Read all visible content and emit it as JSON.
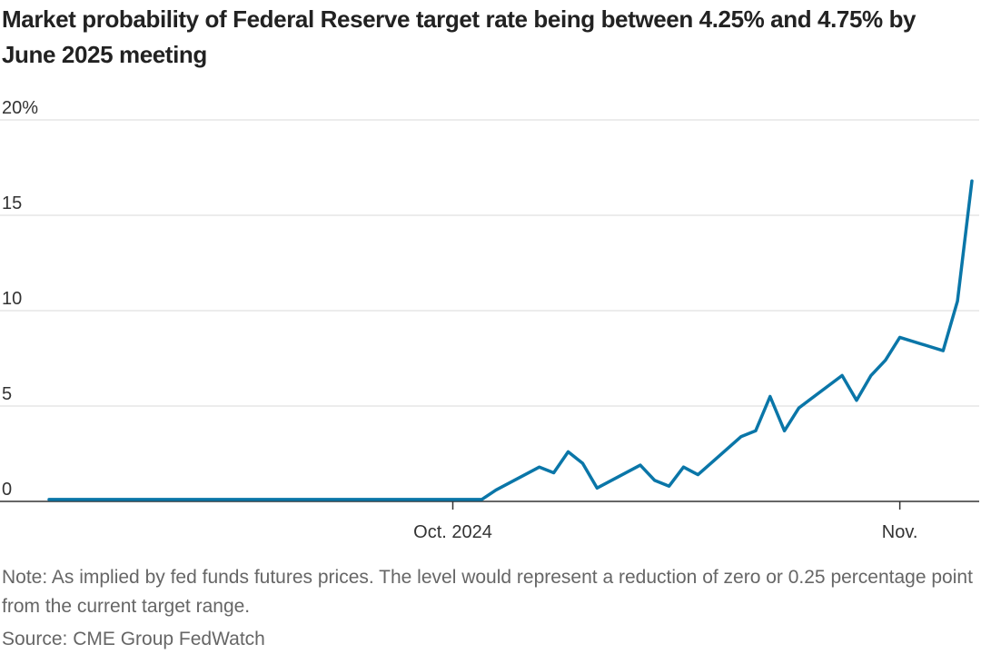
{
  "chart_data": {
    "type": "line",
    "title": "Market probability of Federal Reserve target rate being between 4.25% and 4.75% by June 2025 meeting",
    "note": "Note: As implied by fed funds futures prices. The level would represent a reduction of zero or 0.25 percentage point from the current target range.",
    "source": "Source: CME Group FedWatch",
    "xlabel": "",
    "ylabel": "",
    "ylim": [
      0,
      20
    ],
    "y_ticks": [
      {
        "value": 0,
        "label": "0"
      },
      {
        "value": 5,
        "label": "5"
      },
      {
        "value": 10,
        "label": "10"
      },
      {
        "value": 15,
        "label": "15"
      },
      {
        "value": 20,
        "label": "20%"
      }
    ],
    "xlim": [
      "2024-09-03",
      "2024-11-05"
    ],
    "x_ticks": [
      {
        "date": "2024-10-01",
        "label": "Oct. 2024"
      },
      {
        "date": "2024-11-01",
        "label": "Nov."
      }
    ],
    "grid": true,
    "line_color": "#0a76a8",
    "series": [
      {
        "points": [
          [
            "2024-09-03",
            0.1
          ],
          [
            "2024-10-01",
            0.1
          ],
          [
            "2024-10-03",
            0.1
          ],
          [
            "2024-10-04",
            0.6
          ],
          [
            "2024-10-07",
            1.8
          ],
          [
            "2024-10-08",
            1.5
          ],
          [
            "2024-10-09",
            2.6
          ],
          [
            "2024-10-10",
            2.0
          ],
          [
            "2024-10-11",
            0.7
          ],
          [
            "2024-10-14",
            1.9
          ],
          [
            "2024-10-15",
            1.1
          ],
          [
            "2024-10-16",
            0.8
          ],
          [
            "2024-10-17",
            1.8
          ],
          [
            "2024-10-18",
            1.4
          ],
          [
            "2024-10-21",
            3.4
          ],
          [
            "2024-10-22",
            3.7
          ],
          [
            "2024-10-23",
            5.5
          ],
          [
            "2024-10-24",
            3.7
          ],
          [
            "2024-10-25",
            4.9
          ],
          [
            "2024-10-28",
            6.6
          ],
          [
            "2024-10-29",
            5.3
          ],
          [
            "2024-10-30",
            6.6
          ],
          [
            "2024-10-31",
            7.4
          ],
          [
            "2024-11-01",
            8.6
          ],
          [
            "2024-11-04",
            7.9
          ],
          [
            "2024-11-05",
            10.5
          ],
          [
            "2024-11-06",
            16.8
          ]
        ]
      }
    ]
  }
}
